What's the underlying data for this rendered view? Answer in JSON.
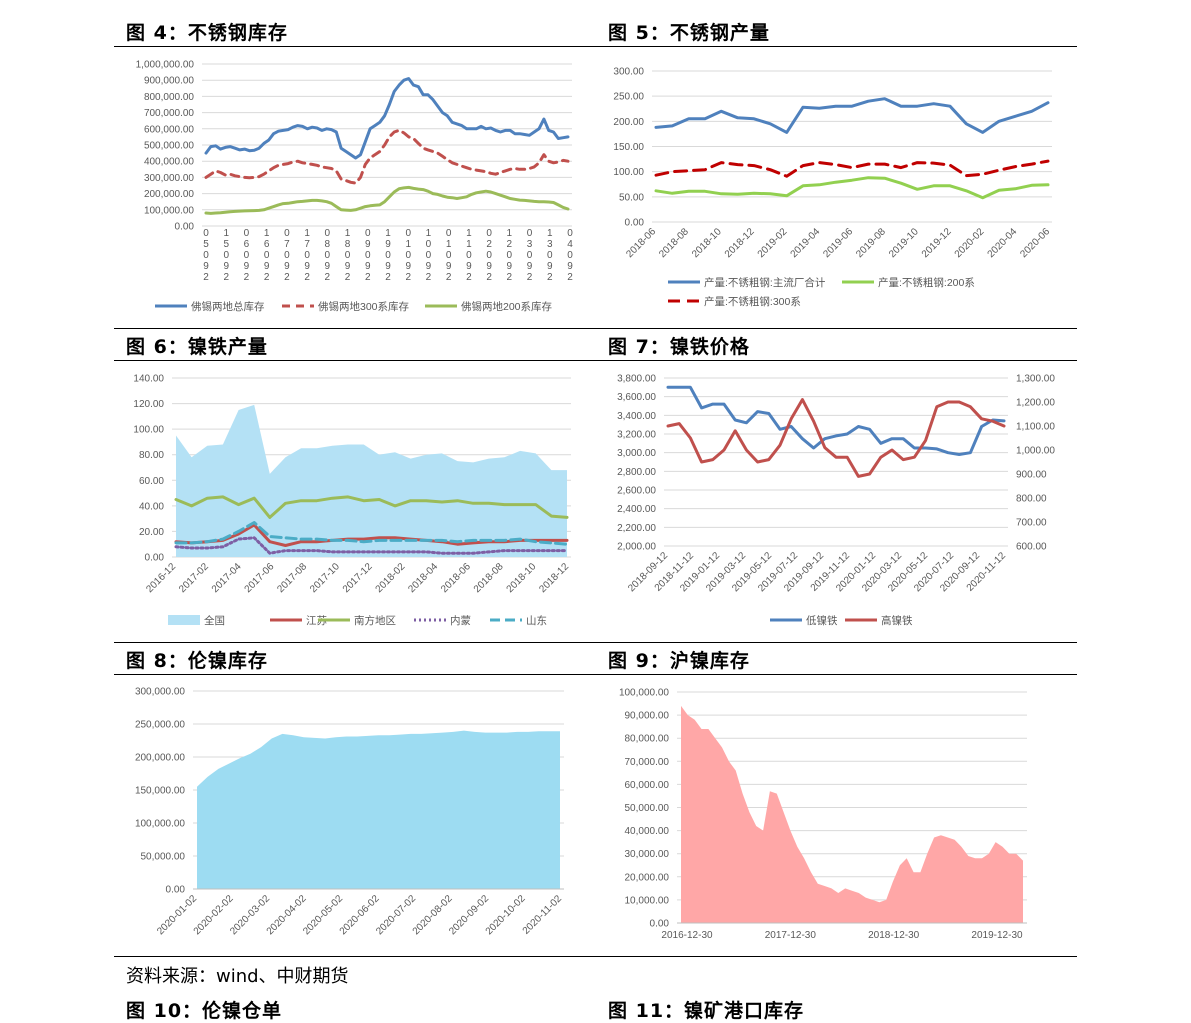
{
  "figures": [
    {
      "title": "图 4：不锈钢库存"
    },
    {
      "title": "图 5：不锈钢产量"
    },
    {
      "title": "图 6：镍铁产量"
    },
    {
      "title": "图 7：镍铁价格"
    },
    {
      "title": "图 8：伦镍库存"
    },
    {
      "title": "图 9：沪镍库存"
    }
  ],
  "source": "资料来源：wind、中财期货",
  "next_titles": [
    "图 10：伦镍仓单",
    "图 11：镍矿港口库存"
  ],
  "chart_data": [
    {
      "id": "fig4",
      "type": "line",
      "ylim": [
        0,
        1000000
      ],
      "yticks": [
        0,
        100000,
        200000,
        300000,
        400000,
        500000,
        600000,
        700000,
        800000,
        900000,
        1000000
      ],
      "ytick_labels": [
        "0.00",
        "100,000.00",
        "200,000.00",
        "300,000.00",
        "400,000.00",
        "500,000.00",
        "600,000.00",
        "700,000.00",
        "800,000.00",
        "900,000.00",
        "1,000,000.00"
      ],
      "xtick_labels": [
        "0\n5\n0\n9\n2",
        "1\n5\n0\n9\n2",
        "0\n6\n0\n9\n2",
        "1\n6\n0\n9\n2",
        "0\n7\n0\n9\n2",
        "1\n7\n0\n9\n2",
        "0\n8\n0\n9\n2",
        "1\n8\n0\n9\n2",
        "0\n9\n0\n9\n2",
        "1\n9\n0\n9\n2",
        "0\n1\n0\n9\n2",
        "1\n0\n0\n9\n2",
        "0\n1\n0\n9\n2",
        "1\n1\n0\n9\n2",
        "0\n2\n0\n9\n2",
        "1\n2\n0\n9\n2",
        "0\n3\n0\n9\n2",
        "1\n3\n0\n9\n2",
        "0\n4\n0\n9\n2"
      ],
      "series": [
        {
          "name": "佛锡两地总库存",
          "color": "#4f81bd",
          "dash": "solid",
          "values": [
            450000,
            490000,
            495000,
            475000,
            485000,
            490000,
            480000,
            470000,
            475000,
            465000,
            468000,
            480000,
            510000,
            530000,
            570000,
            585000,
            590000,
            595000,
            610000,
            620000,
            615000,
            600000,
            610000,
            605000,
            590000,
            600000,
            595000,
            580000,
            480000,
            460000,
            440000,
            420000,
            440000,
            520000,
            600000,
            620000,
            640000,
            680000,
            750000,
            830000,
            870000,
            900000,
            910000,
            870000,
            860000,
            810000,
            810000,
            780000,
            740000,
            700000,
            680000,
            640000,
            630000,
            620000,
            600000,
            600000,
            600000,
            615000,
            600000,
            605000,
            590000,
            580000,
            590000,
            590000,
            570000,
            570000,
            565000,
            560000,
            580000,
            600000,
            660000,
            590000,
            580000,
            540000,
            545000,
            550000
          ]
        },
        {
          "name": "佛锡两地300系库存",
          "color": "#c0504d",
          "dash": "8,6",
          "values": [
            300000,
            320000,
            340000,
            330000,
            315000,
            320000,
            310000,
            305000,
            300000,
            298000,
            300000,
            305000,
            320000,
            340000,
            360000,
            375000,
            380000,
            385000,
            395000,
            400000,
            390000,
            385000,
            380000,
            375000,
            365000,
            360000,
            355000,
            340000,
            290000,
            280000,
            270000,
            265000,
            300000,
            380000,
            420000,
            440000,
            460000,
            500000,
            550000,
            580000,
            590000,
            575000,
            550000,
            540000,
            510000,
            480000,
            470000,
            460000,
            450000,
            430000,
            410000,
            390000,
            380000,
            370000,
            360000,
            350000,
            345000,
            340000,
            335000,
            325000,
            320000,
            330000,
            340000,
            350000,
            355000,
            350000,
            350000,
            355000,
            365000,
            390000,
            440000,
            400000,
            390000,
            395000,
            405000,
            400000
          ]
        },
        {
          "name": "佛锡两地200系库存",
          "color": "#9bbb59",
          "dash": "solid",
          "values": [
            80000,
            78000,
            80000,
            82000,
            85000,
            88000,
            90000,
            92000,
            93000,
            94000,
            95000,
            96000,
            100000,
            110000,
            120000,
            130000,
            138000,
            140000,
            145000,
            150000,
            152000,
            155000,
            158000,
            158000,
            155000,
            150000,
            140000,
            120000,
            100000,
            98000,
            96000,
            100000,
            110000,
            120000,
            125000,
            128000,
            130000,
            150000,
            180000,
            210000,
            230000,
            235000,
            238000,
            232000,
            228000,
            225000,
            215000,
            200000,
            195000,
            185000,
            178000,
            175000,
            170000,
            175000,
            180000,
            195000,
            205000,
            210000,
            215000,
            210000,
            200000,
            190000,
            180000,
            170000,
            165000,
            160000,
            158000,
            155000,
            152000,
            150000,
            150000,
            148000,
            145000,
            130000,
            115000,
            105000
          ]
        }
      ]
    },
    {
      "id": "fig5",
      "type": "line",
      "ylim": [
        0,
        300
      ],
      "yticks": [
        0,
        50,
        100,
        150,
        200,
        250,
        300
      ],
      "ytick_labels": [
        "0.00",
        "50.00",
        "100.00",
        "150.00",
        "200.00",
        "250.00",
        "300.00"
      ],
      "xtick_labels": [
        "2018-06",
        "2018-08",
        "2018-10",
        "2018-12",
        "2019-02",
        "2019-04",
        "2019-06",
        "2019-08",
        "2019-10",
        "2019-12",
        "2020-02",
        "2020-04",
        "2020-06"
      ],
      "series": [
        {
          "name": "产量:不锈粗钢:主流厂合计",
          "color": "#4f81bd",
          "dash": "solid",
          "values": [
            188,
            191,
            205,
            205,
            220,
            207,
            205,
            195,
            178,
            228,
            226,
            230,
            230,
            240,
            245,
            230,
            230,
            235,
            230,
            195,
            178,
            200,
            210,
            220,
            237
          ]
        },
        {
          "name": "产量:不锈粗钢:200系",
          "color": "#92d050",
          "dash": "solid",
          "values": [
            62,
            57,
            61,
            61,
            56,
            55,
            57,
            56,
            52,
            72,
            74,
            79,
            83,
            88,
            87,
            77,
            65,
            72,
            72,
            62,
            48,
            63,
            66,
            73,
            74
          ]
        },
        {
          "name": "产量:不锈粗钢:300系",
          "color": "#c00000",
          "dash": "12,7",
          "values": [
            93,
            100,
            102,
            104,
            118,
            114,
            112,
            104,
            91,
            112,
            118,
            114,
            108,
            115,
            115,
            108,
            118,
            117,
            113,
            92,
            95,
            103,
            110,
            115,
            121
          ]
        }
      ]
    },
    {
      "id": "fig6",
      "type": "line",
      "ylim": [
        0,
        140
      ],
      "yticks": [
        0,
        20,
        40,
        60,
        80,
        100,
        120,
        140
      ],
      "ytick_labels": [
        "0.00",
        "20.00",
        "40.00",
        "60.00",
        "80.00",
        "100.00",
        "120.00",
        "140.00"
      ],
      "xtick_labels": [
        "2016-12",
        "2017-02",
        "2017-04",
        "2017-06",
        "2017-08",
        "2017-10",
        "2017-12",
        "2018-02",
        "2018-04",
        "2018-06",
        "2018-08",
        "2018-10",
        "2018-12"
      ],
      "series": [
        {
          "name": "全国",
          "color": "#b4e1f5",
          "kind": "area",
          "values": [
            95,
            78,
            87,
            88,
            115,
            119,
            65,
            78,
            85,
            85,
            87,
            88,
            88,
            80,
            82,
            77,
            80,
            81,
            75,
            74,
            77,
            78,
            83,
            81,
            68,
            68
          ]
        },
        {
          "name": "江苏",
          "color": "#c0504d",
          "dash": "solid",
          "values": [
            12,
            11,
            12,
            13,
            18,
            25,
            12,
            9,
            12,
            12,
            13,
            14,
            14,
            15,
            15,
            14,
            13,
            12,
            10,
            11,
            12,
            12,
            13,
            13,
            13,
            13
          ]
        },
        {
          "name": "南方地区",
          "color": "#9bbb59",
          "dash": "solid",
          "values": [
            45,
            40,
            46,
            47,
            41,
            46,
            31,
            42,
            44,
            44,
            46,
            47,
            44,
            45,
            40,
            44,
            44,
            43,
            44,
            42,
            42,
            41,
            41,
            41,
            32,
            31
          ]
        },
        {
          "name": "内蒙",
          "color": "#7e5fa4",
          "dash": "2,3",
          "values": [
            8,
            7,
            7,
            8,
            14,
            15,
            3,
            5,
            5,
            5,
            4,
            4,
            4,
            4,
            4,
            4,
            4,
            3,
            3,
            3,
            4,
            5,
            5,
            5,
            5,
            5
          ]
        },
        {
          "name": "山东",
          "color": "#4bacc6",
          "dash": "10,5",
          "values": [
            11,
            11,
            12,
            14,
            20,
            27,
            16,
            15,
            14,
            14,
            13,
            13,
            12,
            13,
            13,
            13,
            13,
            13,
            12,
            13,
            13,
            13,
            14,
            12,
            11,
            10
          ]
        }
      ]
    },
    {
      "id": "fig7",
      "type": "line",
      "ylim": [
        2000,
        3800
      ],
      "yticks": [
        2000,
        2200,
        2400,
        2600,
        2800,
        3000,
        3200,
        3400,
        3600,
        3800
      ],
      "ytick_labels": [
        "2,000.00",
        "2,200.00",
        "2,400.00",
        "2,600.00",
        "2,800.00",
        "3,000.00",
        "3,200.00",
        "3,400.00",
        "3,600.00",
        "3,800.00"
      ],
      "y2lim": [
        600,
        1300
      ],
      "y2ticks": [
        600,
        700,
        800,
        900,
        1000,
        1100,
        1200,
        1300
      ],
      "y2tick_labels": [
        "600.00",
        "700.00",
        "800.00",
        "900.00",
        "1,000.00",
        "1,100.00",
        "1,200.00",
        "1,300.00"
      ],
      "xtick_labels": [
        "2018-09-12",
        "2018-11-12",
        "2019-01-12",
        "2019-03-12",
        "2019-05-12",
        "2019-07-12",
        "2019-09-12",
        "2019-11-12",
        "2020-01-12",
        "2020-03-12",
        "2020-05-12",
        "2020-07-12",
        "2020-09-12",
        "2020-11-12"
      ],
      "series": [
        {
          "name": "低镍铁",
          "color": "#4f81bd",
          "dash": "solid",
          "axis": "left",
          "values": [
            3700,
            3700,
            3700,
            3480,
            3520,
            3520,
            3350,
            3320,
            3440,
            3420,
            3250,
            3280,
            3150,
            3050,
            3150,
            3180,
            3200,
            3280,
            3250,
            3100,
            3150,
            3150,
            3050,
            3050,
            3040,
            3000,
            2980,
            3000,
            3280,
            3350,
            3340
          ]
        },
        {
          "name": "高镍铁",
          "color": "#c0504d",
          "dash": "solid",
          "axis": "right",
          "values": [
            1100,
            1110,
            1050,
            950,
            960,
            1000,
            1080,
            1000,
            950,
            960,
            1020,
            1130,
            1210,
            1120,
            1010,
            970,
            970,
            890,
            900,
            970,
            1000,
            960,
            970,
            1040,
            1180,
            1200,
            1200,
            1180,
            1130,
            1120,
            1100
          ]
        }
      ]
    },
    {
      "id": "fig8",
      "type": "area",
      "ylim": [
        0,
        300000
      ],
      "yticks": [
        0,
        50000,
        100000,
        150000,
        200000,
        250000,
        300000
      ],
      "ytick_labels": [
        "0.00",
        "50,000.00",
        "100,000.00",
        "150,000.00",
        "200,000.00",
        "250,000.00",
        "300,000.00"
      ],
      "xtick_labels": [
        "2020-01-02",
        "2020-02-02",
        "2020-03-02",
        "2020-04-02",
        "2020-05-02",
        "2020-06-02",
        "2020-07-02",
        "2020-08-02",
        "2020-09-02",
        "2020-10-02",
        "2020-11-02"
      ],
      "series": [
        {
          "name": "伦镍库存",
          "color": "#9ddcf2",
          "values": [
            155000,
            170000,
            182000,
            190000,
            198000,
            205000,
            215000,
            228000,
            235000,
            233000,
            230000,
            229000,
            228000,
            230000,
            231000,
            231000,
            232000,
            233000,
            233000,
            234000,
            235000,
            235000,
            236000,
            237000,
            238000,
            240000,
            238000,
            237000,
            237000,
            237000,
            238000,
            238000,
            239000,
            239000,
            239000
          ]
        }
      ]
    },
    {
      "id": "fig9",
      "type": "area",
      "ylim": [
        0,
        100000
      ],
      "yticks": [
        0,
        10000,
        20000,
        30000,
        40000,
        50000,
        60000,
        70000,
        80000,
        90000,
        100000
      ],
      "ytick_labels": [
        "0.00",
        "10,000.00",
        "20,000.00",
        "30,000.00",
        "40,000.00",
        "50,000.00",
        "60,000.00",
        "70,000.00",
        "80,000.00",
        "90,000.00",
        "100,000.00"
      ],
      "xtick_labels": [
        "2016-12-30",
        "2017-12-30",
        "2018-12-30",
        "2019-12-30"
      ],
      "series": [
        {
          "name": "沪镍库存",
          "color": "#ffa7a7",
          "values": [
            94000,
            90000,
            88000,
            84000,
            84000,
            80000,
            76000,
            70000,
            66000,
            56000,
            48000,
            42000,
            40000,
            57000,
            56000,
            48000,
            40000,
            33000,
            28000,
            22000,
            17000,
            16000,
            15000,
            13000,
            15000,
            14000,
            13000,
            11000,
            10000,
            9000,
            10000,
            18000,
            25000,
            28000,
            22000,
            22000,
            30000,
            37000,
            38000,
            37000,
            36000,
            33000,
            29000,
            28000,
            28000,
            30000,
            35000,
            33000,
            30000,
            30000,
            27000
          ]
        }
      ]
    }
  ]
}
